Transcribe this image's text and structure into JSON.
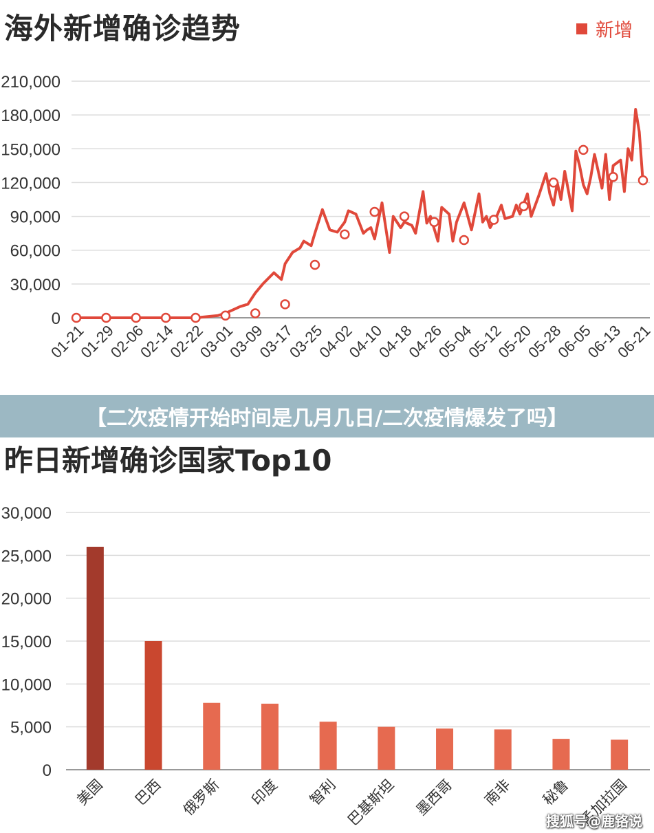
{
  "banner": {
    "text": "【二次疫情开始时间是几月几日/二次疫情爆发了吗】"
  },
  "watermark": {
    "text": "搜狐号@鹿铬说"
  },
  "colors": {
    "line": "#e0483a",
    "grid": "#dcdcdc",
    "axis": "#999999",
    "bar_top": "#a33a2c",
    "bar_second": "#c9472f",
    "bar_rest": "#e66a50"
  },
  "chart_data": [
    {
      "type": "line",
      "title": "海外新增确诊趋势",
      "legend": {
        "entries": [
          "新增"
        ],
        "placement": "top-right"
      },
      "ylim": [
        0,
        210000
      ],
      "y_ticks": [
        "0",
        "30,000",
        "60,000",
        "90,000",
        "120,000",
        "150,000",
        "180,000",
        "210,000"
      ],
      "x_ticks": [
        "01-21",
        "01-29",
        "02-06",
        "02-14",
        "02-22",
        "03-01",
        "03-09",
        "03-17",
        "03-25",
        "04-02",
        "04-10",
        "04-18",
        "04-26",
        "05-04",
        "05-12",
        "05-20",
        "05-28",
        "06-05",
        "06-13",
        "06-21"
      ],
      "grid": true,
      "series": [
        {
          "name": "新增",
          "x": [
            0,
            8,
            16,
            24,
            32,
            38,
            40,
            44,
            46,
            48,
            50,
            53,
            55,
            56,
            58,
            60,
            61,
            63,
            64,
            66,
            68,
            70,
            72,
            73,
            75,
            77,
            78,
            79,
            80,
            82,
            84,
            85,
            87,
            88,
            90,
            91,
            93,
            94,
            95,
            97,
            98,
            100,
            101,
            102,
            104,
            106,
            108,
            109,
            110,
            111,
            113,
            114,
            115,
            117,
            118,
            119,
            121,
            122,
            124,
            126,
            127,
            128,
            129,
            130,
            131,
            133,
            134,
            135,
            136,
            137,
            138,
            139,
            141,
            142,
            143,
            144,
            146,
            147,
            148,
            149,
            150,
            151,
            152
          ],
          "values": [
            0,
            0,
            0,
            0,
            0,
            2000,
            4000,
            10000,
            12000,
            22000,
            30000,
            40000,
            34000,
            48000,
            58000,
            62000,
            68000,
            64000,
            75000,
            96000,
            78000,
            76000,
            85000,
            95000,
            92000,
            75000,
            78000,
            80000,
            70000,
            102000,
            58000,
            90000,
            80000,
            85000,
            82000,
            75000,
            112000,
            84000,
            90000,
            68000,
            98000,
            92000,
            68000,
            85000,
            102000,
            78000,
            110000,
            85000,
            90000,
            80000,
            92000,
            100000,
            88000,
            90000,
            100000,
            92000,
            110000,
            90000,
            108000,
            128000,
            110000,
            100000,
            120000,
            105000,
            130000,
            95000,
            148000,
            135000,
            118000,
            110000,
            125000,
            145000,
            115000,
            145000,
            105000,
            135000,
            140000,
            112000,
            150000,
            140000,
            185000,
            165000,
            120000
          ],
          "markers_x": [
            0,
            8,
            16,
            24,
            32,
            40,
            48,
            56,
            64,
            72,
            80,
            88,
            96,
            104,
            112,
            120,
            128,
            136,
            144,
            152
          ],
          "markers_values": [
            0,
            0,
            0,
            0,
            0,
            2000,
            4000,
            12000,
            47000,
            74000,
            94000,
            90000,
            85000,
            69000,
            87000,
            99000,
            120000,
            149000,
            125000,
            122000
          ]
        }
      ]
    },
    {
      "type": "bar",
      "title": "昨日新增确诊国家Top10",
      "categories": [
        "美国",
        "巴西",
        "俄罗斯",
        "印度",
        "智利",
        "巴基斯坦",
        "墨西哥",
        "南非",
        "秘鲁",
        "孟加拉国"
      ],
      "values": [
        26000,
        15000,
        7800,
        7700,
        5600,
        5000,
        4800,
        4700,
        3600,
        3500
      ],
      "ylim": [
        0,
        30000
      ],
      "y_ticks": [
        "0",
        "5,000",
        "10,000",
        "15,000",
        "20,000",
        "25,000",
        "30,000"
      ],
      "grid": true
    }
  ]
}
